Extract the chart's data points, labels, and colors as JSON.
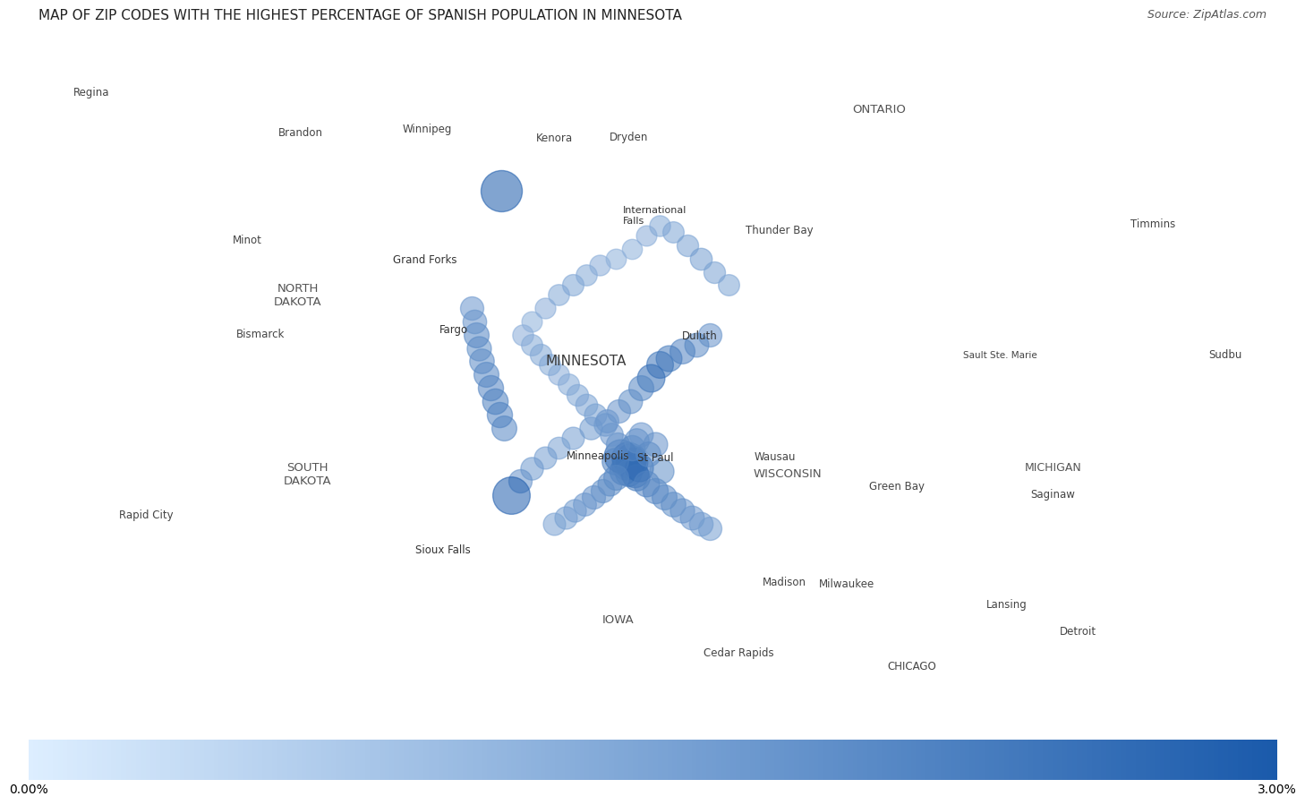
{
  "title": "MAP OF ZIP CODES WITH THE HIGHEST PERCENTAGE OF SPANISH POPULATION IN MINNESOTA",
  "source": "Source: ZipAtlas.com",
  "colorbar_min_label": "0.00%",
  "colorbar_max_label": "3.00%",
  "title_fontsize": 11,
  "source_fontsize": 9,
  "dot_color_light": "#aec9e8",
  "dot_color_dark": "#1a5aab",
  "dot_alpha": 0.55,
  "map_extent": [
    -106.5,
    -79.0,
    41.0,
    51.5
  ],
  "minnesota_fill": "#d0e4f4",
  "minnesota_alpha": 0.7,
  "land_color": "#f5f5f5",
  "border_color": "#cccccc",
  "water_color": "#c5d8ea",
  "dots": [
    {
      "lon": -96.06,
      "lat": 48.97,
      "pct": 3.0,
      "size": 2200
    },
    {
      "lon": -93.45,
      "lat": 44.98,
      "pct": 2.8,
      "size": 1400
    },
    {
      "lon": -93.3,
      "lat": 44.95,
      "pct": 2.9,
      "size": 1300
    },
    {
      "lon": -93.22,
      "lat": 44.93,
      "pct": 3.0,
      "size": 1200
    },
    {
      "lon": -93.18,
      "lat": 44.88,
      "pct": 2.9,
      "size": 1100
    },
    {
      "lon": -93.25,
      "lat": 44.85,
      "pct": 2.7,
      "size": 1100
    },
    {
      "lon": -93.35,
      "lat": 44.82,
      "pct": 2.5,
      "size": 1000
    },
    {
      "lon": -93.4,
      "lat": 44.75,
      "pct": 2.3,
      "size": 950
    },
    {
      "lon": -93.28,
      "lat": 44.72,
      "pct": 2.2,
      "size": 900
    },
    {
      "lon": -93.15,
      "lat": 44.7,
      "pct": 2.4,
      "size": 950
    },
    {
      "lon": -93.1,
      "lat": 44.65,
      "pct": 2.1,
      "size": 900
    },
    {
      "lon": -93.05,
      "lat": 44.8,
      "pct": 2.6,
      "size": 1000
    },
    {
      "lon": -93.58,
      "lat": 44.9,
      "pct": 2.0,
      "size": 900
    },
    {
      "lon": -93.55,
      "lat": 44.65,
      "pct": 1.8,
      "size": 800
    },
    {
      "lon": -93.7,
      "lat": 44.55,
      "pct": 1.7,
      "size": 750
    },
    {
      "lon": -93.85,
      "lat": 44.45,
      "pct": 1.6,
      "size": 700
    },
    {
      "lon": -94.05,
      "lat": 44.35,
      "pct": 1.5,
      "size": 700
    },
    {
      "lon": -94.25,
      "lat": 44.25,
      "pct": 1.4,
      "size": 680
    },
    {
      "lon": -94.45,
      "lat": 44.15,
      "pct": 1.3,
      "size": 660
    },
    {
      "lon": -94.65,
      "lat": 44.05,
      "pct": 1.2,
      "size": 650
    },
    {
      "lon": -94.9,
      "lat": 43.95,
      "pct": 1.1,
      "size": 640
    },
    {
      "lon": -92.9,
      "lat": 44.55,
      "pct": 1.9,
      "size": 850
    },
    {
      "lon": -92.7,
      "lat": 44.45,
      "pct": 1.8,
      "size": 820
    },
    {
      "lon": -92.5,
      "lat": 44.35,
      "pct": 1.7,
      "size": 800
    },
    {
      "lon": -92.3,
      "lat": 44.25,
      "pct": 1.6,
      "size": 780
    },
    {
      "lon": -92.1,
      "lat": 44.15,
      "pct": 1.5,
      "size": 760
    },
    {
      "lon": -91.9,
      "lat": 44.05,
      "pct": 1.4,
      "size": 740
    },
    {
      "lon": -91.7,
      "lat": 43.95,
      "pct": 1.3,
      "size": 720
    },
    {
      "lon": -91.5,
      "lat": 43.88,
      "pct": 1.2,
      "size": 700
    },
    {
      "lon": -93.52,
      "lat": 45.15,
      "pct": 1.5,
      "size": 700
    },
    {
      "lon": -93.65,
      "lat": 45.3,
      "pct": 1.4,
      "size": 680
    },
    {
      "lon": -93.8,
      "lat": 45.45,
      "pct": 1.3,
      "size": 660
    },
    {
      "lon": -94.0,
      "lat": 45.6,
      "pct": 1.2,
      "size": 640
    },
    {
      "lon": -94.2,
      "lat": 45.75,
      "pct": 1.1,
      "size": 620
    },
    {
      "lon": -94.4,
      "lat": 45.9,
      "pct": 1.0,
      "size": 600
    },
    {
      "lon": -94.6,
      "lat": 46.05,
      "pct": 0.9,
      "size": 580
    },
    {
      "lon": -94.8,
      "lat": 46.2,
      "pct": 0.8,
      "size": 560
    },
    {
      "lon": -95.0,
      "lat": 46.35,
      "pct": 0.9,
      "size": 580
    },
    {
      "lon": -95.2,
      "lat": 46.5,
      "pct": 1.0,
      "size": 600
    },
    {
      "lon": -95.4,
      "lat": 46.65,
      "pct": 0.9,
      "size": 580
    },
    {
      "lon": -95.6,
      "lat": 46.8,
      "pct": 0.8,
      "size": 560
    },
    {
      "lon": -95.4,
      "lat": 47.0,
      "pct": 0.7,
      "size": 540
    },
    {
      "lon": -95.1,
      "lat": 47.2,
      "pct": 0.8,
      "size": 550
    },
    {
      "lon": -94.8,
      "lat": 47.4,
      "pct": 0.9,
      "size": 570
    },
    {
      "lon": -94.5,
      "lat": 47.55,
      "pct": 1.0,
      "size": 590
    },
    {
      "lon": -94.2,
      "lat": 47.7,
      "pct": 0.9,
      "size": 570
    },
    {
      "lon": -93.9,
      "lat": 47.85,
      "pct": 0.8,
      "size": 550
    },
    {
      "lon": -93.55,
      "lat": 47.95,
      "pct": 0.7,
      "size": 530
    },
    {
      "lon": -93.2,
      "lat": 48.1,
      "pct": 0.7,
      "size": 520
    },
    {
      "lon": -92.9,
      "lat": 48.3,
      "pct": 0.8,
      "size": 540
    },
    {
      "lon": -92.6,
      "lat": 48.45,
      "pct": 0.9,
      "size": 560
    },
    {
      "lon": -92.3,
      "lat": 48.35,
      "pct": 1.0,
      "size": 580
    },
    {
      "lon": -92.0,
      "lat": 48.15,
      "pct": 1.1,
      "size": 600
    },
    {
      "lon": -91.7,
      "lat": 47.95,
      "pct": 1.2,
      "size": 620
    },
    {
      "lon": -91.4,
      "lat": 47.75,
      "pct": 1.1,
      "size": 600
    },
    {
      "lon": -91.1,
      "lat": 47.55,
      "pct": 1.0,
      "size": 580
    },
    {
      "lon": -91.5,
      "lat": 46.8,
      "pct": 1.5,
      "size": 700
    },
    {
      "lon": -91.8,
      "lat": 46.65,
      "pct": 1.7,
      "size": 740
    },
    {
      "lon": -92.1,
      "lat": 46.55,
      "pct": 1.9,
      "size": 800
    },
    {
      "lon": -92.4,
      "lat": 46.45,
      "pct": 2.1,
      "size": 860
    },
    {
      "lon": -92.6,
      "lat": 46.35,
      "pct": 2.3,
      "size": 920
    },
    {
      "lon": -92.8,
      "lat": 46.15,
      "pct": 2.5,
      "size": 980
    },
    {
      "lon": -93.0,
      "lat": 46.0,
      "pct": 1.8,
      "size": 800
    },
    {
      "lon": -93.25,
      "lat": 45.8,
      "pct": 1.6,
      "size": 740
    },
    {
      "lon": -93.5,
      "lat": 45.65,
      "pct": 1.5,
      "size": 700
    },
    {
      "lon": -93.75,
      "lat": 45.5,
      "pct": 1.4,
      "size": 680
    },
    {
      "lon": -94.1,
      "lat": 45.4,
      "pct": 1.3,
      "size": 660
    },
    {
      "lon": -94.5,
      "lat": 45.25,
      "pct": 1.2,
      "size": 640
    },
    {
      "lon": -94.8,
      "lat": 45.1,
      "pct": 1.1,
      "size": 620
    },
    {
      "lon": -95.1,
      "lat": 44.95,
      "pct": 1.2,
      "size": 640
    },
    {
      "lon": -95.4,
      "lat": 44.78,
      "pct": 1.3,
      "size": 660
    },
    {
      "lon": -95.65,
      "lat": 44.6,
      "pct": 1.5,
      "size": 700
    },
    {
      "lon": -95.85,
      "lat": 44.38,
      "pct": 2.9,
      "size": 1800
    },
    {
      "lon": -96.0,
      "lat": 45.4,
      "pct": 1.8,
      "size": 800
    },
    {
      "lon": -96.1,
      "lat": 45.6,
      "pct": 1.9,
      "size": 820
    },
    {
      "lon": -96.2,
      "lat": 45.8,
      "pct": 2.0,
      "size": 840
    },
    {
      "lon": -96.3,
      "lat": 46.0,
      "pct": 1.9,
      "size": 820
    },
    {
      "lon": -96.4,
      "lat": 46.2,
      "pct": 1.8,
      "size": 800
    },
    {
      "lon": -96.5,
      "lat": 46.4,
      "pct": 1.7,
      "size": 780
    },
    {
      "lon": -96.55,
      "lat": 46.6,
      "pct": 1.6,
      "size": 760
    },
    {
      "lon": -96.6,
      "lat": 46.8,
      "pct": 1.8,
      "size": 800
    },
    {
      "lon": -96.65,
      "lat": 47.0,
      "pct": 1.5,
      "size": 720
    },
    {
      "lon": -96.7,
      "lat": 47.2,
      "pct": 1.4,
      "size": 700
    },
    {
      "lon": -93.2,
      "lat": 45.1,
      "pct": 1.8,
      "size": 820
    },
    {
      "lon": -93.1,
      "lat": 45.2,
      "pct": 1.6,
      "size": 780
    },
    {
      "lon": -93.0,
      "lat": 45.3,
      "pct": 1.4,
      "size": 740
    },
    {
      "lon": -92.85,
      "lat": 45.0,
      "pct": 1.7,
      "size": 790
    },
    {
      "lon": -92.7,
      "lat": 45.15,
      "pct": 1.5,
      "size": 750
    },
    {
      "lon": -92.55,
      "lat": 44.75,
      "pct": 1.6,
      "size": 760
    }
  ],
  "city_labels": [
    {
      "name": "Minneapolis",
      "lon": -93.26,
      "lat": 44.98,
      "fontsize": 8.5,
      "color": "#333333",
      "ha": "right",
      "dot": true
    },
    {
      "name": "St Paul",
      "lon": -93.09,
      "lat": 44.95,
      "fontsize": 8.5,
      "color": "#333333",
      "ha": "left",
      "dot": true
    },
    {
      "name": "Duluth",
      "lon": -92.11,
      "lat": 46.79,
      "fontsize": 8.5,
      "color": "#333333",
      "ha": "left",
      "dot": true
    },
    {
      "name": "Fargo",
      "lon": -96.79,
      "lat": 46.88,
      "fontsize": 8.5,
      "color": "#333333",
      "ha": "right",
      "dot": true
    },
    {
      "name": "Grand Forks",
      "lon": -97.03,
      "lat": 47.93,
      "fontsize": 8.5,
      "color": "#333333",
      "ha": "right",
      "dot": true
    },
    {
      "name": "International\nFalls",
      "lon": -93.41,
      "lat": 48.6,
      "fontsize": 8,
      "color": "#333333",
      "ha": "left",
      "dot": true
    },
    {
      "name": "Sioux Falls",
      "lon": -96.73,
      "lat": 43.55,
      "fontsize": 8.5,
      "color": "#333333",
      "ha": "right",
      "dot": true
    },
    {
      "name": "Minot",
      "lon": -101.29,
      "lat": 48.23,
      "fontsize": 8.5,
      "color": "#444444",
      "ha": "right",
      "dot": true
    },
    {
      "name": "Bismarck",
      "lon": -100.78,
      "lat": 46.81,
      "fontsize": 8.5,
      "color": "#444444",
      "ha": "right",
      "dot": true
    },
    {
      "name": "Rapid City",
      "lon": -103.22,
      "lat": 44.08,
      "fontsize": 8.5,
      "color": "#444444",
      "ha": "right",
      "dot": true
    },
    {
      "name": "NORTH\nDAKOTA",
      "lon": -100.5,
      "lat": 47.4,
      "fontsize": 9.5,
      "color": "#555555",
      "ha": "center",
      "dot": false
    },
    {
      "name": "SOUTH\nDAKOTA",
      "lon": -100.3,
      "lat": 44.7,
      "fontsize": 9.5,
      "color": "#555555",
      "ha": "center",
      "dot": false
    },
    {
      "name": "MINNESOTA",
      "lon": -94.2,
      "lat": 46.4,
      "fontsize": 11,
      "color": "#3a3a3a",
      "ha": "center",
      "dot": false
    },
    {
      "name": "WISCONSIN",
      "lon": -89.8,
      "lat": 44.7,
      "fontsize": 9.5,
      "color": "#555555",
      "ha": "center",
      "dot": false
    },
    {
      "name": "IOWA",
      "lon": -93.5,
      "lat": 42.5,
      "fontsize": 9.5,
      "color": "#555555",
      "ha": "center",
      "dot": false
    },
    {
      "name": "ONTARIO",
      "lon": -87.8,
      "lat": 50.2,
      "fontsize": 9.5,
      "color": "#555555",
      "ha": "center",
      "dot": false
    },
    {
      "name": "Winnipeg",
      "lon": -97.14,
      "lat": 49.9,
      "fontsize": 8.5,
      "color": "#444444",
      "ha": "right",
      "dot": true
    },
    {
      "name": "Brandon",
      "lon": -99.95,
      "lat": 49.85,
      "fontsize": 8.5,
      "color": "#444444",
      "ha": "right",
      "dot": true
    },
    {
      "name": "Regina",
      "lon": -104.62,
      "lat": 50.45,
      "fontsize": 8.5,
      "color": "#444444",
      "ha": "right",
      "dot": true
    },
    {
      "name": "Thunder Bay",
      "lon": -89.25,
      "lat": 48.38,
      "fontsize": 8.5,
      "color": "#444444",
      "ha": "right",
      "dot": true
    },
    {
      "name": "Kenora",
      "lon": -94.49,
      "lat": 49.77,
      "fontsize": 8.5,
      "color": "#444444",
      "ha": "right",
      "dot": true
    },
    {
      "name": "Dryden",
      "lon": -92.84,
      "lat": 49.78,
      "fontsize": 8.5,
      "color": "#444444",
      "ha": "right",
      "dot": true
    },
    {
      "name": "Wausau",
      "lon": -89.63,
      "lat": 44.96,
      "fontsize": 8.5,
      "color": "#444444",
      "ha": "right",
      "dot": true
    },
    {
      "name": "Green Bay",
      "lon": -88.02,
      "lat": 44.52,
      "fontsize": 8.5,
      "color": "#444444",
      "ha": "left",
      "dot": true
    },
    {
      "name": "Madison",
      "lon": -89.4,
      "lat": 43.07,
      "fontsize": 8.5,
      "color": "#444444",
      "ha": "right",
      "dot": true
    },
    {
      "name": "Milwaukee",
      "lon": -87.91,
      "lat": 43.04,
      "fontsize": 8.5,
      "color": "#444444",
      "ha": "right",
      "dot": true
    },
    {
      "name": "Lansing",
      "lon": -84.56,
      "lat": 42.73,
      "fontsize": 8.5,
      "color": "#444444",
      "ha": "right",
      "dot": true
    },
    {
      "name": "Sault Ste. Marie",
      "lon": -84.35,
      "lat": 46.49,
      "fontsize": 7.5,
      "color": "#444444",
      "ha": "right",
      "dot": true
    },
    {
      "name": "MICHIGAN",
      "lon": -84.0,
      "lat": 44.8,
      "fontsize": 9,
      "color": "#555555",
      "ha": "center",
      "dot": false
    },
    {
      "name": "Saginaw",
      "lon": -84.0,
      "lat": 44.4,
      "fontsize": 8.5,
      "color": "#444444",
      "ha": "center",
      "dot": false
    },
    {
      "name": "Detroit",
      "lon": -83.05,
      "lat": 42.33,
      "fontsize": 8.5,
      "color": "#444444",
      "ha": "right",
      "dot": true
    },
    {
      "name": "Timmins",
      "lon": -81.33,
      "lat": 48.47,
      "fontsize": 8.5,
      "color": "#444444",
      "ha": "right",
      "dot": true
    },
    {
      "name": "Sudbu",
      "lon": -80.6,
      "lat": 46.5,
      "fontsize": 8.5,
      "color": "#444444",
      "ha": "left",
      "dot": false
    },
    {
      "name": "Cedar Rapids",
      "lon": -91.64,
      "lat": 42.0,
      "fontsize": 8.5,
      "color": "#444444",
      "ha": "left",
      "dot": true
    },
    {
      "name": "CHICAGO",
      "lon": -87.63,
      "lat": 41.8,
      "fontsize": 8.5,
      "color": "#444444",
      "ha": "left",
      "dot": true
    }
  ]
}
